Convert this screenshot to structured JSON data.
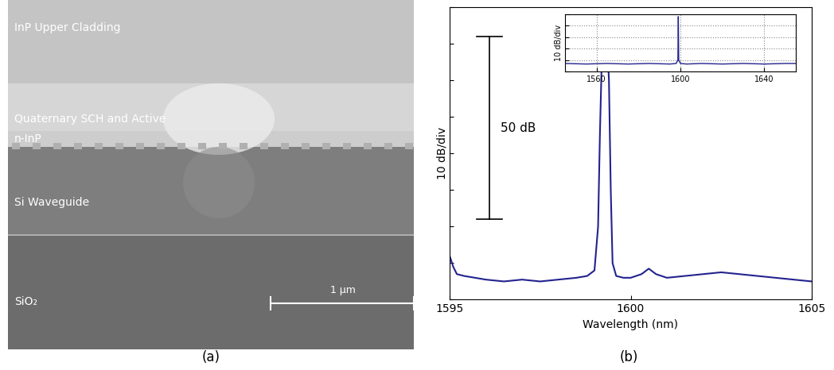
{
  "panel_a": {
    "caption": "(a)",
    "layers": [
      "InP Upper Cladding",
      "Quaternary SCH and Active",
      "n-InP",
      "Si Waveguide",
      "SiO₂"
    ],
    "scale_bar": "1 μm"
  },
  "chart_data": [
    {
      "caption": "(b)",
      "type": "line",
      "xlabel": "Wavelength (nm)",
      "ylabel": "10 dB/div",
      "x": [
        1595.0,
        1595.1,
        1595.2,
        1595.4,
        1595.7,
        1596.0,
        1596.5,
        1597.0,
        1597.5,
        1598.0,
        1598.5,
        1598.8,
        1599.0,
        1599.1,
        1599.15,
        1599.2,
        1599.25,
        1599.3,
        1599.35,
        1599.4,
        1599.45,
        1599.5,
        1599.6,
        1599.8,
        1600.0,
        1600.3,
        1600.5,
        1600.7,
        1601.0,
        1601.5,
        1602.0,
        1602.5,
        1603.0,
        1603.5,
        1604.0,
        1604.5,
        1605.0
      ],
      "values": [
        -68,
        -71,
        -73,
        -73.5,
        -74,
        -74.5,
        -75,
        -74.5,
        -75,
        -74.5,
        -74,
        -73.5,
        -72,
        -60,
        -35,
        -15,
        -8,
        -7,
        -9,
        -20,
        -50,
        -70,
        -73.5,
        -74,
        -74,
        -73,
        -71.5,
        -73,
        -74,
        -73.5,
        -73,
        -72.5,
        -73,
        -73.5,
        -74,
        -74.5,
        -75
      ],
      "color": "#23238e",
      "xlim": [
        1595,
        1605
      ],
      "xticks": [
        1595,
        1600,
        1605
      ],
      "ylim": [
        -80,
        0
      ],
      "yticks": [
        -80,
        -70,
        -60,
        -50,
        -40,
        -30,
        -20,
        -10,
        0
      ],
      "tick_labels": "x",
      "annotation": {
        "text": "50 dB",
        "x": 1596.1,
        "y_top": -8,
        "y_bottom": -58
      }
    },
    {
      "type": "line",
      "ylabel": "10 dB/div",
      "x": [
        1545,
        1555,
        1565,
        1575,
        1585,
        1595,
        1598,
        1598.8,
        1599,
        1599.2,
        1600,
        1603,
        1610,
        1620,
        1630,
        1640,
        1650,
        1655
      ],
      "values": [
        -43,
        -43.5,
        -43,
        -43.5,
        -43,
        -43.5,
        -43,
        -40,
        -2,
        -40,
        -43,
        -43.5,
        -43,
        -43.5,
        -43,
        -43.5,
        -43,
        -43
      ],
      "color": "#23238e",
      "xlim": [
        1545,
        1655
      ],
      "xticks": [
        1560,
        1600,
        1640
      ],
      "ylim": [
        -50,
        0
      ],
      "yticks": [
        -50,
        -40,
        -30,
        -20,
        -10,
        0
      ],
      "tick_labels": "x",
      "grid": true
    }
  ]
}
